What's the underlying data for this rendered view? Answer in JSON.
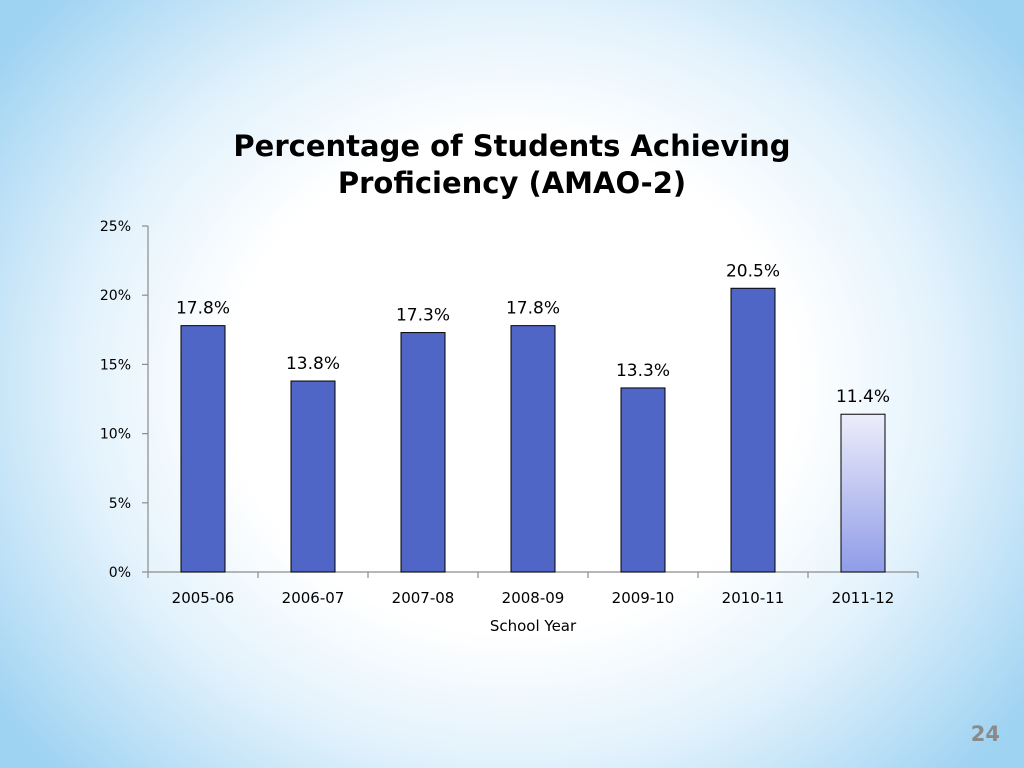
{
  "slide": {
    "page_number": "24"
  },
  "colors": {
    "bar_fill": "#4f66c6",
    "bar_highlight_top": "#ededfa",
    "bar_highlight_bottom": "#8f9ce8",
    "bar_stroke": "#000000"
  },
  "chart_data": {
    "type": "bar",
    "title_lines": [
      "Percentage of Students Achieving",
      "Proficiency (AMAO-2)"
    ],
    "xlabel": "School Year",
    "ylabel": "",
    "categories": [
      "2005-06",
      "2006-07",
      "2007-08",
      "2008-09",
      "2009-10",
      "2010-11",
      "2011-12"
    ],
    "values": [
      17.8,
      13.8,
      17.3,
      17.8,
      13.3,
      20.5,
      11.4
    ],
    "data_labels": [
      "17.8%",
      "13.8%",
      "17.3%",
      "17.8%",
      "13.3%",
      "20.5%",
      "11.4%"
    ],
    "highlighted_category": "2011-12",
    "ylim": [
      0,
      25
    ],
    "yticks": [
      0,
      5,
      10,
      15,
      20,
      25
    ],
    "ytick_labels": [
      "0%",
      "5%",
      "10%",
      "15%",
      "20%",
      "25%"
    ],
    "grid": false,
    "legend": "none"
  }
}
